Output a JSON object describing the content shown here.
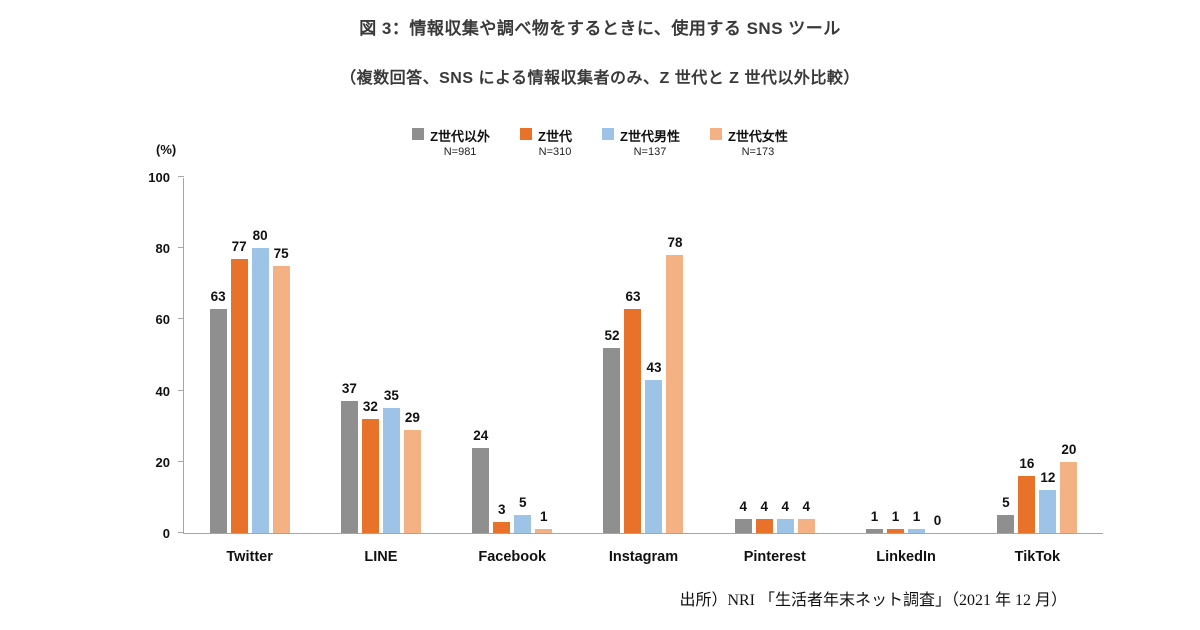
{
  "title": "図 3：情報収集や調べ物をするときに、使用する SNS ツール",
  "subtitle": "（複数回答、SNS による情報収集者のみ、Z 世代と Z 世代以外比較）",
  "source": "出所）NRI 「生活者年末ネット調査」（2021 年 12 月）",
  "chart_data": {
    "type": "bar",
    "title": "図 3：情報収集や調べ物をするときに、使用する SNS ツール",
    "subtitle": "（複数回答、SNS による情報収集者のみ、Z 世代と Z 世代以外比較）",
    "ylabel": "(%)",
    "ylim": [
      0,
      100
    ],
    "yticks": [
      0,
      20,
      40,
      60,
      80,
      100
    ],
    "grid": false,
    "legend_position": "top",
    "categories": [
      "Twitter",
      "LINE",
      "Facebook",
      "Instagram",
      "Pinterest",
      "LinkedIn",
      "TikTok"
    ],
    "series": [
      {
        "name": "Z世代以外",
        "n_label": "N=981",
        "color": "#8f8f8f",
        "values": [
          63,
          37,
          24,
          52,
          4,
          1,
          5
        ]
      },
      {
        "name": "Z世代",
        "n_label": "N=310",
        "color": "#e8722a",
        "values": [
          77,
          32,
          3,
          63,
          4,
          1,
          16
        ]
      },
      {
        "name": "Z世代男性",
        "n_label": "N=137",
        "color": "#9dc3e6",
        "values": [
          80,
          35,
          5,
          43,
          4,
          1,
          12
        ]
      },
      {
        "name": "Z世代女性",
        "n_label": "N=173",
        "color": "#f4b183",
        "values": [
          75,
          29,
          1,
          78,
          4,
          0,
          20
        ]
      }
    ]
  }
}
